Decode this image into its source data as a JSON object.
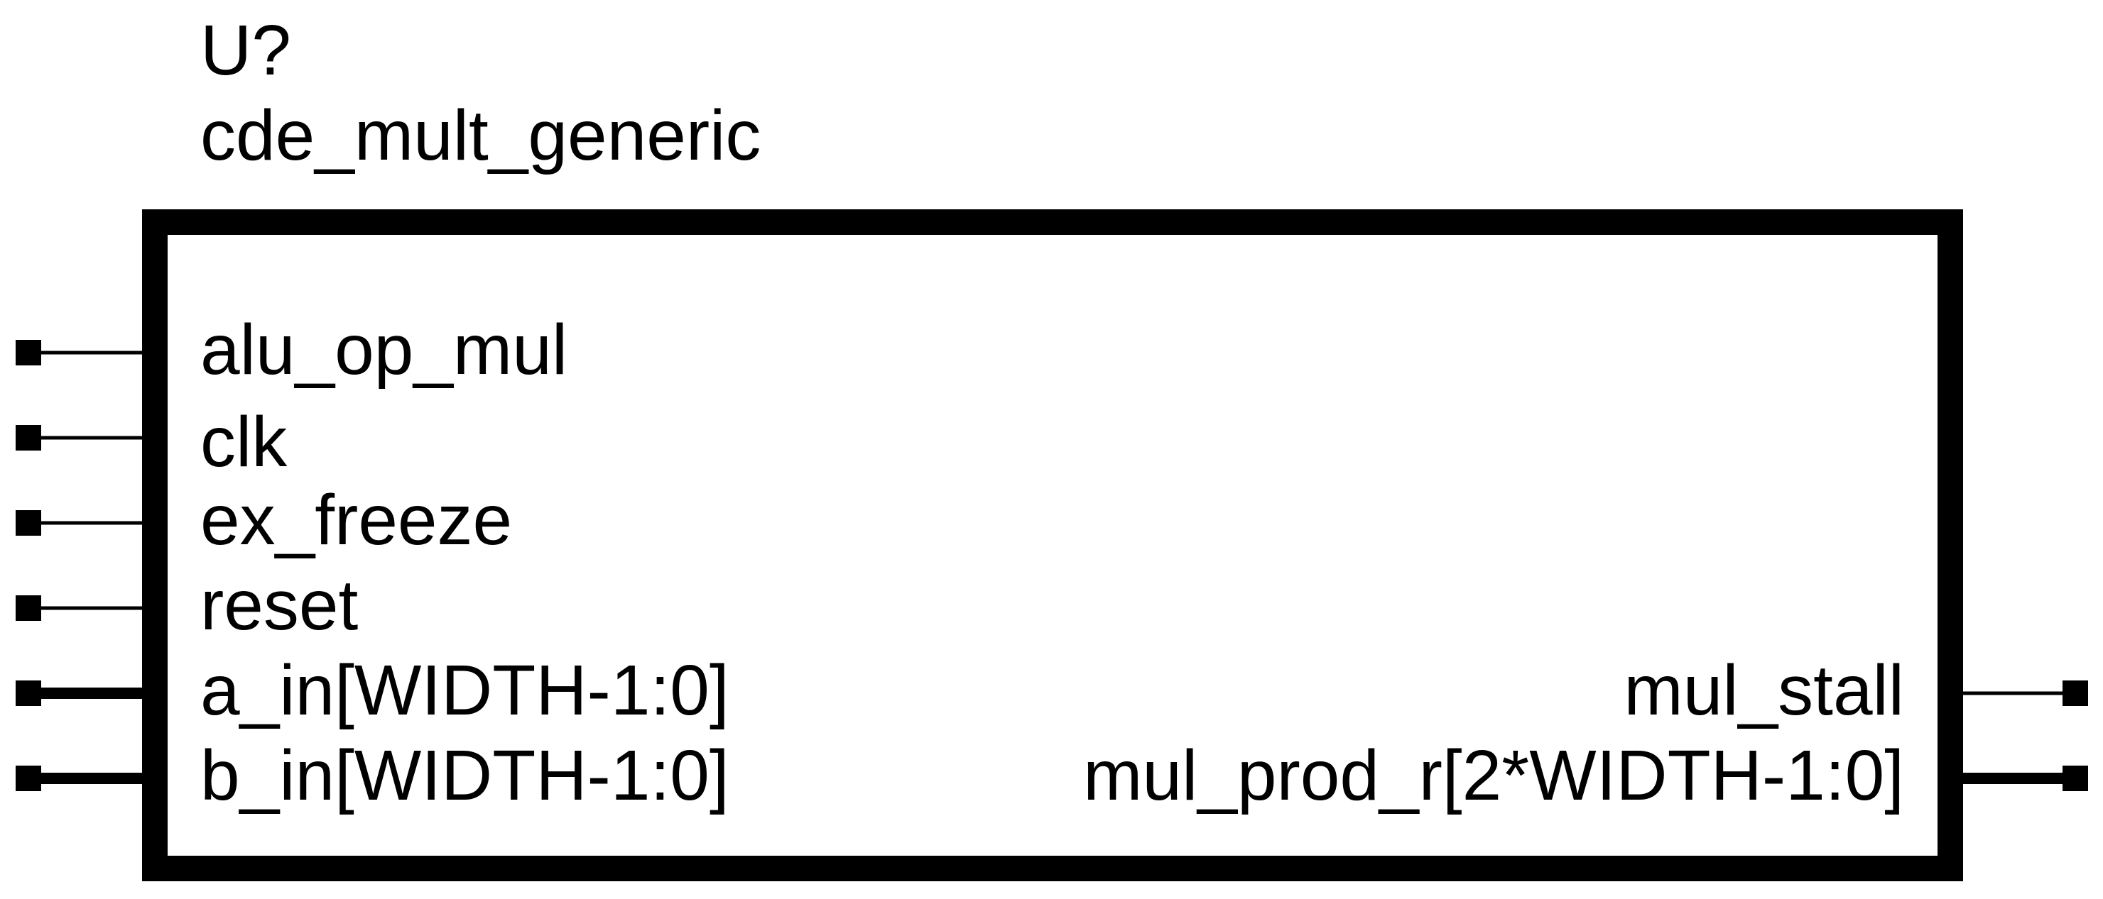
{
  "symbol": {
    "reference": "U?",
    "name": "cde_mult_generic",
    "stroke_color": "#000000",
    "background_color": "#ffffff"
  },
  "ports": {
    "left": [
      {
        "label": "alu_op_mul",
        "bus": false
      },
      {
        "label": "clk",
        "bus": false
      },
      {
        "label": "ex_freeze",
        "bus": false
      },
      {
        "label": "reset",
        "bus": false
      },
      {
        "label": "a_in[WIDTH-1:0]",
        "bus": true
      },
      {
        "label": "b_in[WIDTH-1:0]",
        "bus": true
      }
    ],
    "right": [
      {
        "label": "mul_stall",
        "bus": false
      },
      {
        "label": "mul_prod_r[2*WIDTH-1:0]",
        "bus": true
      }
    ]
  }
}
